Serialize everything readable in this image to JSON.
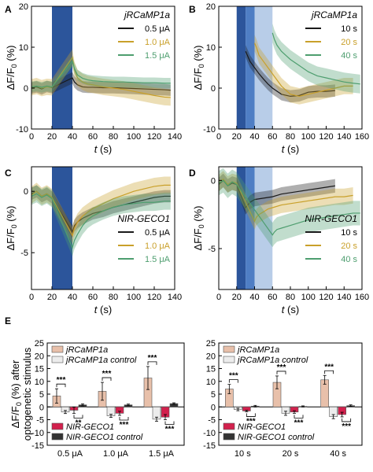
{
  "figure": {
    "colors": {
      "black": "#1a1a1a",
      "gold": "#c9a02a",
      "green": "#4e9e6f",
      "stim_dark": "#2c559b",
      "stim_mid": "#4f7ec4",
      "stim_light": "#b8cde8",
      "jr_bar": "#e8c0aa",
      "jr_ctrl_bar": "#ececec",
      "nir_bar": "#d2214d",
      "nir_ctrl_bar": "#333333"
    }
  },
  "chart_data": [
    {
      "panel": "A",
      "type": "line",
      "title": "jRCaMP1a",
      "xlabel": "t (s)",
      "ylabel": "ΔF/F0 (%)",
      "xlim": [
        0,
        140
      ],
      "ylim": [
        -10,
        20
      ],
      "xticks": [
        0,
        20,
        40,
        60,
        80,
        100,
        120,
        140
      ],
      "yticks": [
        -10,
        0,
        10,
        20
      ],
      "stim": [
        [
          20,
          40,
          "stim_dark"
        ]
      ],
      "legend_position": "top-right",
      "series": [
        {
          "name": "0.5 μA",
          "color": "black",
          "x": [
            0,
            5,
            10,
            15,
            20,
            40,
            42,
            45,
            50,
            55,
            60,
            70,
            80,
            90,
            100,
            110,
            120,
            130,
            136
          ],
          "y": [
            0,
            0.3,
            -0.2,
            0.4,
            0.1,
            2.5,
            1.5,
            0.8,
            0.3,
            0.2,
            0.2,
            0.1,
            0.1,
            0.0,
            -0.1,
            -0.2,
            -0.3,
            -0.4,
            -0.5
          ],
          "band": 1.4
        },
        {
          "name": "1.0 μA",
          "color": "gold",
          "x": [
            0,
            5,
            10,
            15,
            20,
            40,
            42,
            45,
            50,
            55,
            60,
            70,
            80,
            90,
            100,
            110,
            120,
            130,
            136
          ],
          "y": [
            0.2,
            0.5,
            0.0,
            0.3,
            0.2,
            7.5,
            4.5,
            2.5,
            1.5,
            1.0,
            0.8,
            0.3,
            0.0,
            -0.3,
            -0.8,
            -1.3,
            -1.8,
            -2.2,
            -2.3
          ],
          "band": 2.0
        },
        {
          "name": "1.5 μA",
          "color": "green",
          "x": [
            0,
            5,
            10,
            15,
            20,
            40,
            42,
            45,
            50,
            55,
            60,
            70,
            80,
            90,
            100,
            110,
            120,
            130,
            136
          ],
          "y": [
            0.3,
            0.5,
            0.2,
            0.5,
            0.3,
            6.5,
            4.8,
            3.2,
            2.4,
            2.0,
            1.8,
            1.6,
            1.5,
            1.5,
            1.4,
            1.3,
            1.3,
            1.2,
            1.2
          ],
          "band": 1.3
        }
      ]
    },
    {
      "panel": "B",
      "type": "line",
      "title": "jRCaMP1a",
      "xlabel": "t (s)",
      "ylabel": "ΔF/F0 (%)",
      "xlim": [
        0,
        160
      ],
      "ylim": [
        -10,
        20
      ],
      "xticks": [
        0,
        20,
        40,
        60,
        80,
        100,
        120,
        140,
        160
      ],
      "yticks": [
        -10,
        0,
        10,
        20
      ],
      "stim": [
        [
          20,
          30,
          "stim_dark"
        ],
        [
          30,
          40,
          "stim_mid"
        ],
        [
          40,
          60,
          "stim_light"
        ]
      ],
      "legend_position": "top-right",
      "series": [
        {
          "name": "10 s",
          "color": "black",
          "x": [
            30,
            32,
            35,
            40,
            45,
            50,
            55,
            60,
            70,
            80,
            90,
            100,
            110,
            120,
            130
          ],
          "y": [
            9,
            8,
            6.5,
            5,
            3.5,
            2.2,
            1.0,
            0,
            -1.5,
            -2.0,
            -1.8,
            -1.0,
            -0.8,
            -0.8,
            -0.6
          ],
          "band": 1.5
        },
        {
          "name": "20 s",
          "color": "gold",
          "x": [
            40,
            42,
            45,
            50,
            55,
            60,
            65,
            70,
            80,
            90,
            100,
            110,
            120,
            130,
            140,
            150
          ],
          "y": [
            11,
            10,
            8,
            6.5,
            5,
            3.5,
            2.0,
            0.5,
            -1.5,
            -2.0,
            -1.5,
            -1.0,
            -0.5,
            0,
            0.5,
            0.5
          ],
          "band": 2.0
        },
        {
          "name": "40 s",
          "color": "green",
          "x": [
            60,
            62,
            65,
            70,
            75,
            80,
            90,
            100,
            110,
            120,
            130,
            140,
            150,
            158
          ],
          "y": [
            13.5,
            12,
            10.5,
            9,
            8,
            7,
            5.5,
            4,
            3,
            2.5,
            2,
            1.5,
            1.2,
            1
          ],
          "band": 2.3
        }
      ]
    },
    {
      "panel": "C",
      "type": "line",
      "title": "NIR-GECO1",
      "xlabel": "t (s)",
      "ylabel": "ΔF/F0 (%)",
      "xlim": [
        0,
        140
      ],
      "ylim": [
        -8,
        2
      ],
      "xticks": [
        0,
        20,
        40,
        60,
        80,
        100,
        120,
        140
      ],
      "yticks": [
        -5,
        0
      ],
      "stim": [
        [
          20,
          40,
          "stim_dark"
        ]
      ],
      "legend_position": "bottom-right",
      "series": [
        {
          "name": "0.5 μA",
          "color": "black",
          "x": [
            0,
            5,
            10,
            15,
            20,
            40,
            42,
            45,
            50,
            55,
            60,
            70,
            80,
            90,
            100,
            110,
            120,
            130,
            136
          ],
          "y": [
            -0.2,
            0,
            -0.4,
            -0.2,
            -0.5,
            -3.3,
            -2.8,
            -2.5,
            -2.2,
            -2.0,
            -1.8,
            -1.6,
            -1.3,
            -1.1,
            -0.9,
            -0.7,
            -0.5,
            -0.4,
            -0.4
          ],
          "band": 0.5
        },
        {
          "name": "1.0 μA",
          "color": "gold",
          "x": [
            0,
            5,
            10,
            15,
            20,
            40,
            42,
            45,
            50,
            55,
            60,
            70,
            80,
            90,
            100,
            110,
            120,
            130,
            136
          ],
          "y": [
            -0.3,
            0,
            -0.4,
            -0.2,
            -0.5,
            -3.6,
            -3.0,
            -2.5,
            -2.0,
            -1.7,
            -1.4,
            -1.0,
            -0.6,
            -0.3,
            0,
            0.2,
            0.4,
            0.5,
            0.5
          ],
          "band": 0.7
        },
        {
          "name": "1.5 μA",
          "color": "green",
          "x": [
            0,
            5,
            10,
            15,
            20,
            40,
            42,
            45,
            50,
            55,
            60,
            70,
            80,
            90,
            100,
            110,
            120,
            130,
            136
          ],
          "y": [
            -0.4,
            -0.2,
            -0.5,
            -0.3,
            -0.6,
            -4.6,
            -4.0,
            -3.5,
            -2.8,
            -2.3,
            -2.0,
            -1.6,
            -1.3,
            -1.1,
            -1.0,
            -0.9,
            -0.9,
            -0.8,
            -0.8
          ],
          "band": 0.7
        }
      ]
    },
    {
      "panel": "D",
      "type": "line",
      "title": "NIR-GECO1",
      "xlabel": "t (s)",
      "ylabel": "ΔF/F0 (%)",
      "xlim": [
        0,
        160
      ],
      "ylim": [
        -8,
        1
      ],
      "xticks": [
        0,
        20,
        40,
        60,
        80,
        100,
        120,
        140,
        160
      ],
      "yticks": [
        -5,
        0
      ],
      "stim": [
        [
          20,
          30,
          "stim_dark"
        ],
        [
          30,
          40,
          "stim_mid"
        ],
        [
          40,
          60,
          "stim_light"
        ]
      ],
      "legend_position": "bottom-right",
      "series": [
        {
          "name": "10 s",
          "color": "black",
          "x": [
            0,
            5,
            10,
            15,
            20,
            30,
            35,
            40,
            50,
            60,
            70,
            80,
            90,
            100,
            110,
            120,
            130
          ],
          "y": [
            -0.3,
            0,
            -0.4,
            -0.2,
            -0.3,
            -2.0,
            -1.6,
            -1.4,
            -1.3,
            -1.2,
            -1.0,
            -0.9,
            -0.8,
            -0.7,
            -0.6,
            -0.5,
            -0.4
          ],
          "band": 0.5
        },
        {
          "name": "20 s",
          "color": "gold",
          "x": [
            0,
            5,
            10,
            15,
            20,
            40,
            42,
            45,
            50,
            55,
            60,
            70,
            80,
            90,
            100,
            110,
            120,
            130,
            140,
            150
          ],
          "y": [
            -0.2,
            0.1,
            -0.3,
            -0.1,
            -0.2,
            -3.0,
            -2.7,
            -2.5,
            -2.3,
            -2.1,
            -2.0,
            -1.8,
            -1.7,
            -1.6,
            -1.5,
            -1.4,
            -1.3,
            -1.2,
            -1.2,
            -1.1
          ],
          "band": 0.6
        },
        {
          "name": "40 s",
          "color": "green",
          "x": [
            0,
            5,
            10,
            15,
            20,
            60,
            62,
            65,
            70,
            80,
            90,
            100,
            110,
            120,
            130,
            140,
            150,
            158
          ],
          "y": [
            -0.2,
            0,
            -0.4,
            -0.1,
            -0.3,
            -4.0,
            -3.8,
            -3.6,
            -3.5,
            -3.3,
            -3.1,
            -2.9,
            -2.8,
            -2.7,
            -2.6,
            -2.5,
            -2.4,
            -2.4
          ],
          "band": 0.9
        }
      ]
    },
    {
      "panel": "E",
      "type": "bar",
      "ylabel": "ΔF/F0 (%) after optogenetic stimulus",
      "ylim": [
        -15,
        25
      ],
      "yticks": [
        -15,
        -10,
        -5,
        0,
        5,
        10,
        15,
        20,
        25
      ],
      "legend_position": "top-left and bottom-left",
      "groups_left": [
        "0.5 μA",
        "1.0 μA",
        "1.5 μA"
      ],
      "groups_right": [
        "10 s",
        "20 s",
        "40 s"
      ],
      "series": [
        {
          "name": "jRCaMP1a",
          "color": "jr_bar",
          "left": [
            4.3,
            6.1,
            11.3
          ],
          "left_err": [
            2.8,
            3.5,
            4.5
          ],
          "right": [
            7.0,
            9.6,
            10.6
          ],
          "right_err": [
            1.8,
            2.5,
            1.7
          ]
        },
        {
          "name": "jRCaMP1a control",
          "color": "jr_ctrl_bar",
          "left": [
            -2.0,
            -3.5,
            -4.8
          ],
          "left_err": [
            0.6,
            0.6,
            0.8
          ],
          "right": [
            -1.0,
            -2.5,
            -3.8
          ],
          "right_err": [
            0.5,
            0.8,
            0.8
          ]
        },
        {
          "name": "NIR-GECO1",
          "color": "nir_bar",
          "left": [
            -1.3,
            -2.5,
            -4.0
          ],
          "left_err": [
            1.2,
            0.8,
            1.0
          ],
          "right": [
            -1.6,
            -2.0,
            -3.0
          ],
          "right_err": [
            0.3,
            0.5,
            0.9
          ]
        },
        {
          "name": "NIR-GECO1 control",
          "color": "nir_ctrl_bar",
          "left": [
            0.8,
            0.8,
            1.3
          ],
          "left_err": [
            0.4,
            0.3,
            0.3
          ],
          "right": [
            0.3,
            0.2,
            0.5
          ],
          "right_err": [
            0.3,
            0.2,
            0.3
          ]
        }
      ],
      "significance": "***"
    }
  ]
}
